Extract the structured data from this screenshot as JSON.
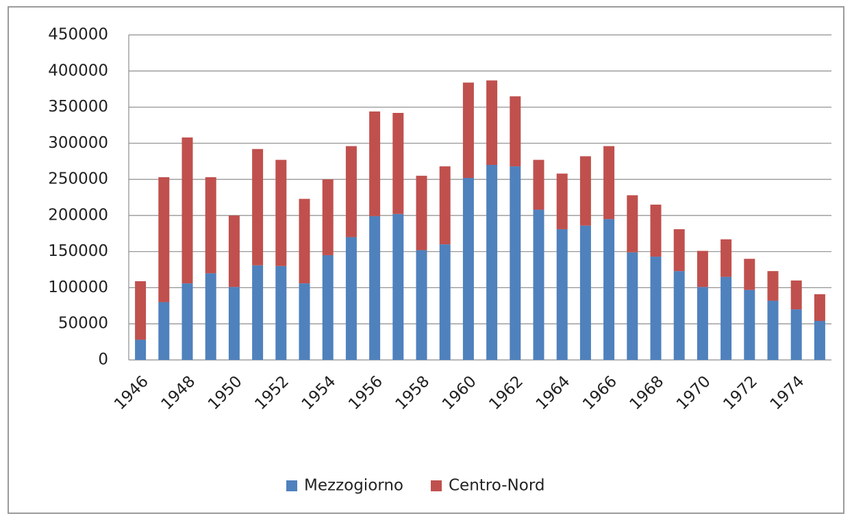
{
  "chart_data": {
    "type": "stacked_bar",
    "categories": [
      "1946",
      null,
      "1948",
      null,
      "1950",
      null,
      "1952",
      null,
      "1954",
      null,
      "1956",
      null,
      "1958",
      null,
      "1960",
      null,
      "1962",
      null,
      "1964",
      null,
      "1966",
      null,
      "1968",
      null,
      "1970",
      null,
      "1972",
      null,
      "1974",
      null
    ],
    "series": [
      {
        "name": "Mezzogiorno",
        "color": "#4f81bd",
        "values": [
          28000,
          80000,
          106000,
          120000,
          101000,
          131000,
          130000,
          106000,
          145000,
          170000,
          199000,
          202000,
          152000,
          160000,
          252000,
          270000,
          268000,
          208000,
          181000,
          186000,
          195000,
          149000,
          143000,
          123000,
          101000,
          115000,
          97000,
          82000,
          70000,
          54000
        ]
      },
      {
        "name": "Centro-Nord",
        "color": "#c0504d",
        "values": [
          81000,
          173000,
          202000,
          133000,
          99000,
          161000,
          147000,
          117000,
          105000,
          126000,
          145000,
          140000,
          103000,
          108000,
          132000,
          117000,
          97000,
          69000,
          77000,
          96000,
          101000,
          79000,
          72000,
          58000,
          50000,
          52000,
          43000,
          41000,
          40000,
          37000
        ]
      }
    ],
    "ylim": [
      0,
      450000
    ],
    "yticks": [
      0,
      50000,
      100000,
      150000,
      200000,
      250000,
      300000,
      350000,
      400000,
      450000
    ],
    "grid": true,
    "legend": "bottom"
  }
}
